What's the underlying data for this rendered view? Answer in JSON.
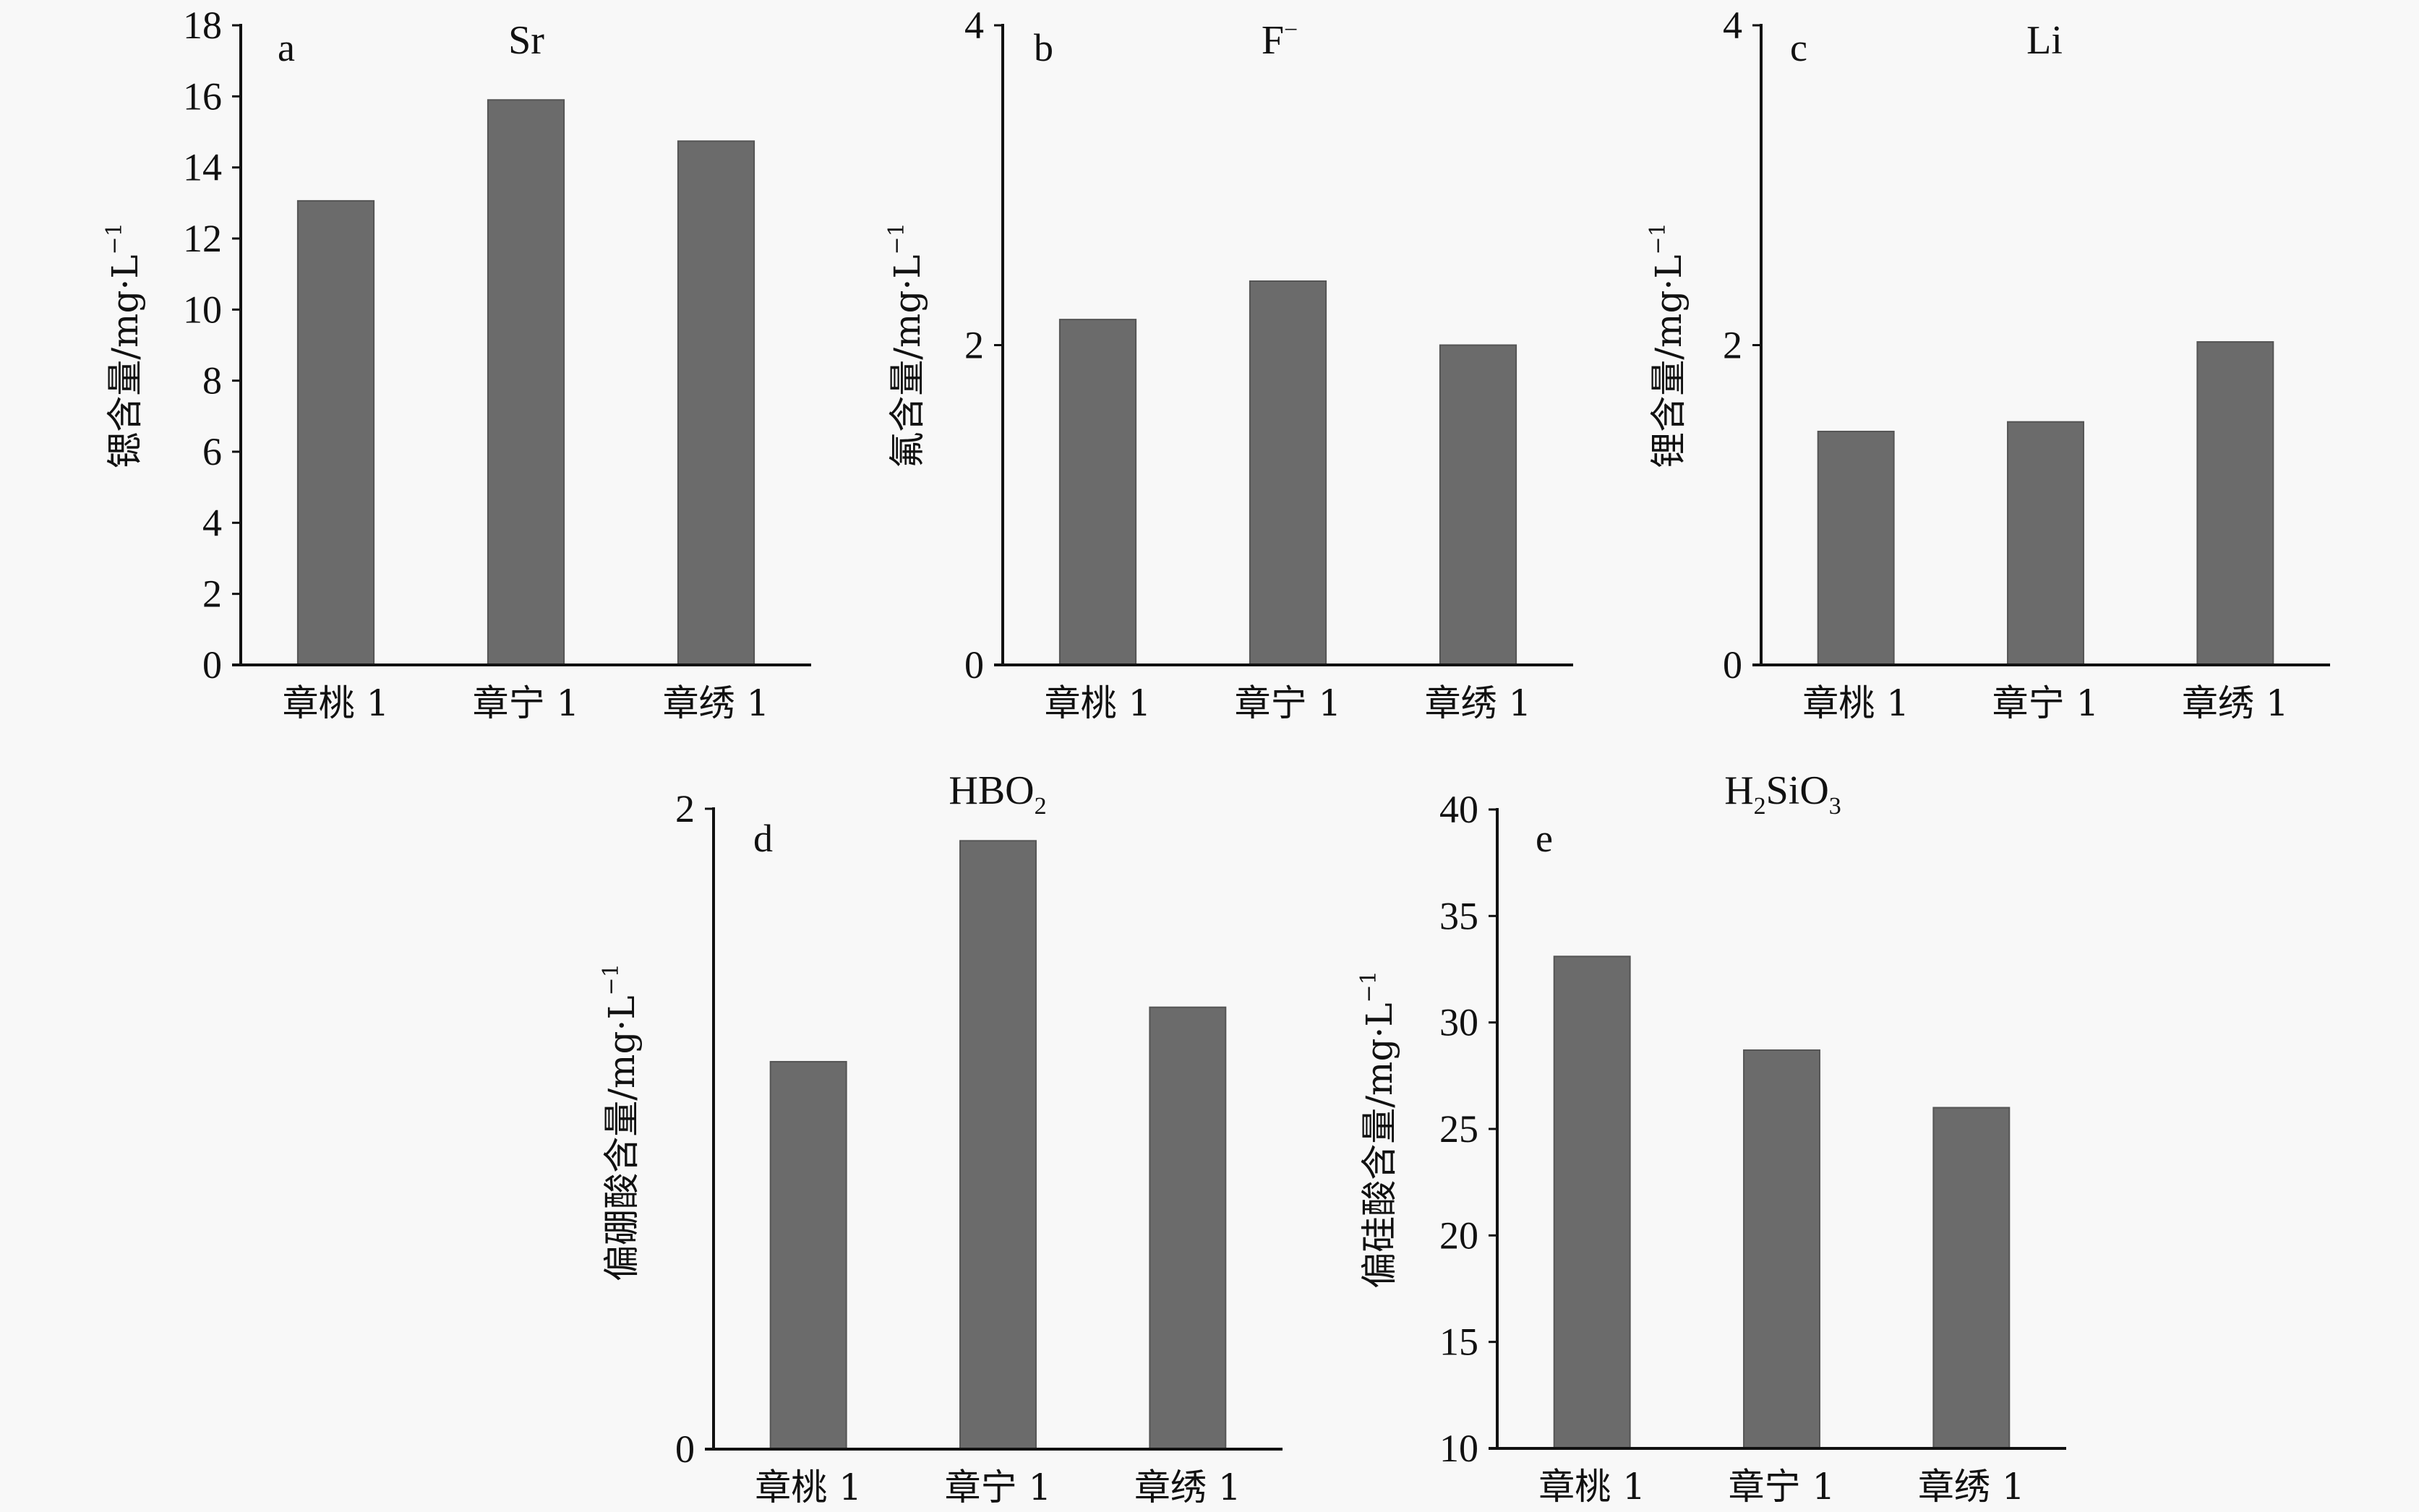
{
  "chart_data": [
    {
      "type": "bar",
      "panel": "a",
      "title": "Sr",
      "title_sub": "",
      "ylabel": "锶含量/mg·L",
      "ylabel_sup": "−1",
      "categories": [
        "章桃 1",
        "章宁 1",
        "章绣 1"
      ],
      "values": [
        13.06,
        15.9,
        14.74
      ],
      "ylim": [
        0,
        18
      ],
      "yticks": [
        "0",
        "2",
        "4",
        "6",
        "8",
        "10",
        "12",
        "14",
        "16",
        "18"
      ],
      "bar_color": "#6b6b6b"
    },
    {
      "type": "bar",
      "panel": "b",
      "title": "F",
      "title_sup": "−",
      "ylabel": "氟含量/mg·L",
      "ylabel_sup": "−1",
      "categories": [
        "章桃 1",
        "章宁 1",
        "章绣 1"
      ],
      "values": [
        2.16,
        2.4,
        2.0
      ],
      "ylim": [
        0,
        4
      ],
      "yticks": [
        "0",
        "2",
        "4"
      ],
      "bar_color": "#6b6b6b"
    },
    {
      "type": "bar",
      "panel": "c",
      "title": "Li",
      "ylabel": "锂含量/mg·L",
      "ylabel_sup": "−1",
      "categories": [
        "章桃 1",
        "章宁 1",
        "章绣 1"
      ],
      "values": [
        1.46,
        1.52,
        2.02
      ],
      "ylim": [
        0,
        4
      ],
      "yticks": [
        "0",
        "2",
        "4"
      ],
      "bar_color": "#6b6b6b"
    },
    {
      "type": "bar",
      "panel": "d",
      "title_parts": [
        "HBO",
        "2",
        ""
      ],
      "ylabel": "偏硼酸含量/mg·L",
      "ylabel_sup": "−1",
      "categories": [
        "章桃 1",
        "章宁 1",
        "章绣 1"
      ],
      "values": [
        1.21,
        1.9,
        1.38
      ],
      "ylim": [
        0,
        2
      ],
      "yticks": [
        "0",
        "2"
      ],
      "bar_color": "#6b6b6b"
    },
    {
      "type": "bar",
      "panel": "e",
      "title_parts": [
        "H",
        "2",
        "SiO",
        "3"
      ],
      "ylabel": "偏硅酸含量/mg·L",
      "ylabel_sup": "−1",
      "categories": [
        "章桃 1",
        "章宁 1",
        "章绣 1"
      ],
      "values": [
        33.1,
        28.7,
        26.0
      ],
      "ylim": [
        10,
        40
      ],
      "yticks": [
        "10",
        "15",
        "20",
        "25",
        "30",
        "35",
        "40"
      ],
      "bar_color": "#6b6b6b"
    }
  ]
}
